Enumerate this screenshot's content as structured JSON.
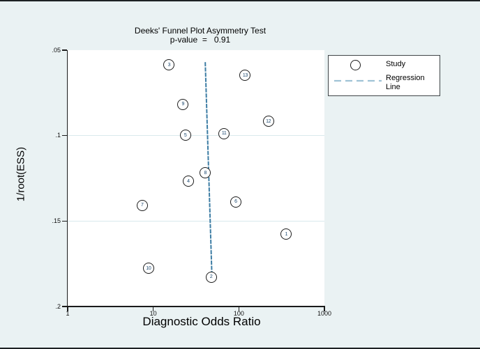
{
  "title": {
    "line1": "Deeks' Funnel Plot Asymmetry Test",
    "line2": "p-value  =   0.91"
  },
  "axes": {
    "x_label": "Diagnostic Odds Ratio",
    "y_label": "1/root(ESS)"
  },
  "legend": {
    "study_label": "Study",
    "regression_label": "Regression Line"
  },
  "colors": {
    "background": "#eaf2f3",
    "plot_background": "#ffffff",
    "gridline": "#d9e9ec",
    "axis": "#1a1a1a",
    "regression_line": "#3d7da4",
    "legend_dash": "#9fc3d6",
    "marker_stroke": "#1c1c1c",
    "marker_label": "#1a476f"
  },
  "chart_data": {
    "type": "scatter",
    "title": "Deeks' Funnel Plot Asymmetry Test",
    "subtitle": "p-value  =   0.91",
    "xlabel": "Diagnostic Odds Ratio",
    "ylabel": "1/root(ESS)",
    "x_scale": "log10",
    "xlim": [
      1,
      1000
    ],
    "ylim": [
      0.05,
      0.2
    ],
    "y_axis_inverted": true,
    "grid": "horizontal",
    "legend_position": "outside-top-right",
    "x_ticks": {
      "values": [
        1,
        10,
        100,
        1000
      ],
      "labels": [
        "1",
        "10",
        "100",
        "1000"
      ]
    },
    "y_ticks": {
      "values": [
        0.05,
        0.1,
        0.15,
        0.2
      ],
      "labels": [
        ".05",
        ".1",
        ".15",
        ".2"
      ]
    },
    "gridline_values": [
      0.1,
      0.15
    ],
    "points": [
      {
        "study": "1",
        "dor": 362,
        "inv_root_ess": 0.158
      },
      {
        "study": "2",
        "dor": 48,
        "inv_root_ess": 0.183
      },
      {
        "study": "3",
        "dor": 15.5,
        "inv_root_ess": 0.059
      },
      {
        "study": "4",
        "dor": 26,
        "inv_root_ess": 0.127
      },
      {
        "study": "5",
        "dor": 24,
        "inv_root_ess": 0.1
      },
      {
        "study": "6",
        "dor": 93,
        "inv_root_ess": 0.139
      },
      {
        "study": "7",
        "dor": 7.5,
        "inv_root_ess": 0.141
      },
      {
        "study": "8",
        "dor": 41,
        "inv_root_ess": 0.122
      },
      {
        "study": "9",
        "dor": 22.5,
        "inv_root_ess": 0.082
      },
      {
        "study": "10",
        "dor": 8.9,
        "inv_root_ess": 0.178
      },
      {
        "study": "11",
        "dor": 68,
        "inv_root_ess": 0.099
      },
      {
        "study": "12",
        "dor": 224,
        "inv_root_ess": 0.092
      },
      {
        "study": "13",
        "dor": 120,
        "inv_root_ess": 0.065
      }
    ],
    "regression_line": {
      "style": "dashed",
      "from": {
        "dor": 40.5,
        "inv_root_ess": 0.057
      },
      "to": {
        "dor": 48.3,
        "inv_root_ess": 0.18
      }
    }
  }
}
